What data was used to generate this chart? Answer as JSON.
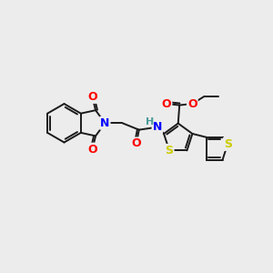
{
  "background_color": "#ececec",
  "bond_color": "#1a1a1a",
  "bond_width": 1.4,
  "atom_colors": {
    "O": "#ff0000",
    "N": "#0000ff",
    "S": "#cccc00",
    "H": "#4a9a9a",
    "C": "#1a1a1a"
  },
  "font_size_atoms": 9
}
